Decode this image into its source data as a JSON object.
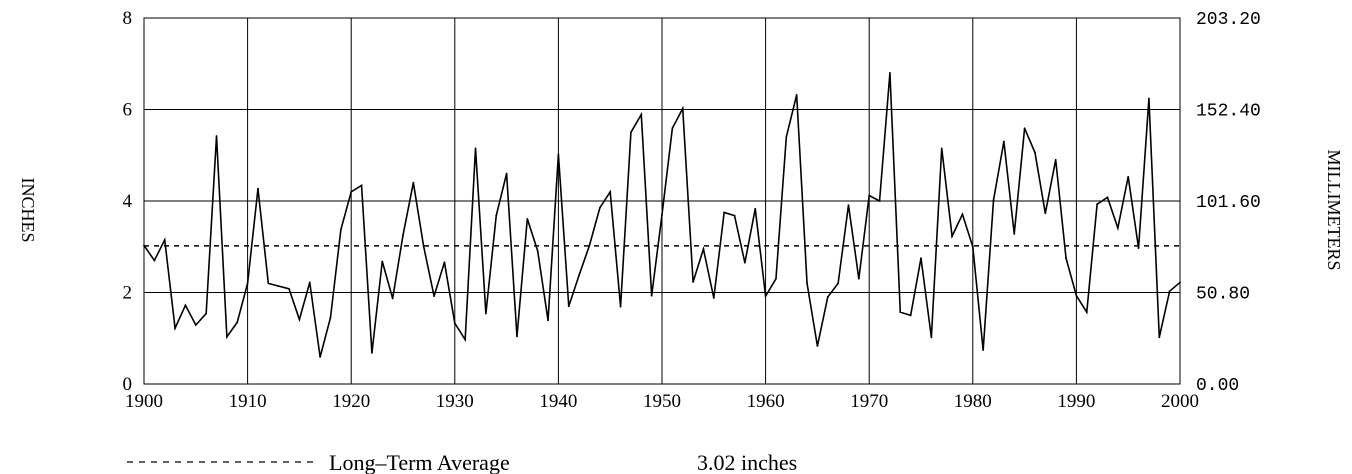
{
  "chart_data": {
    "type": "line",
    "title": "",
    "xlabel": "",
    "ylabel": "INCHES",
    "y2label": "MILLIMETERS",
    "xlim": [
      1900,
      2000
    ],
    "ylim": [
      0,
      8
    ],
    "x_ticks": [
      "1900",
      "1910",
      "1920",
      "1930",
      "1940",
      "1950",
      "1960",
      "1970",
      "1980",
      "1990",
      "2000"
    ],
    "y_ticks": [
      "0",
      "2",
      "4",
      "6",
      "8"
    ],
    "y2_ticks": [
      "0.00",
      "50.80",
      "101.60",
      "152.40",
      "203.20"
    ],
    "grid": true,
    "series": [
      {
        "name": "",
        "x": [
          1900,
          1901,
          1902,
          1903,
          1904,
          1905,
          1906,
          1907,
          1908,
          1909,
          1910,
          1911,
          1912,
          1913,
          1914,
          1915,
          1916,
          1917,
          1918,
          1919,
          1920,
          1921,
          1922,
          1923,
          1924,
          1925,
          1926,
          1927,
          1928,
          1929,
          1930,
          1931,
          1932,
          1933,
          1934,
          1935,
          1936,
          1937,
          1938,
          1939,
          1940,
          1941,
          1942,
          1943,
          1944,
          1945,
          1946,
          1947,
          1948,
          1949,
          1950,
          1951,
          1952,
          1953,
          1954,
          1955,
          1956,
          1957,
          1958,
          1959,
          1960,
          1961,
          1962,
          1963,
          1964,
          1965,
          1966,
          1967,
          1968,
          1969,
          1970,
          1971,
          1972,
          1973,
          1974,
          1975,
          1976,
          1977,
          1978,
          1979,
          1980,
          1981,
          1982,
          1983,
          1984,
          1985,
          1986,
          1987,
          1988,
          1989,
          1990,
          1991,
          1992,
          1993,
          1994,
          1995,
          1996,
          1997,
          1998,
          1999,
          2000
        ],
        "values": [
          3.03,
          2.7,
          3.15,
          1.22,
          1.72,
          1.29,
          1.54,
          5.42,
          1.03,
          1.35,
          2.2,
          4.27,
          2.2,
          2.14,
          2.08,
          1.41,
          2.22,
          0.59,
          1.45,
          3.37,
          4.2,
          4.34,
          0.68,
          2.68,
          1.87,
          3.25,
          4.4,
          3.0,
          1.92,
          2.66,
          1.33,
          0.97,
          5.15,
          1.54,
          3.68,
          4.6,
          1.04,
          3.61,
          2.91,
          1.39,
          5.02,
          1.7,
          2.38,
          3.03,
          3.85,
          4.2,
          1.69,
          5.5,
          5.89,
          1.93,
          3.7,
          5.59,
          6.02,
          2.23,
          2.95,
          1.88,
          3.75,
          3.68,
          2.65,
          3.83,
          1.92,
          2.3,
          5.4,
          6.32,
          2.2,
          0.83,
          1.9,
          2.2,
          3.91,
          2.3,
          4.12,
          4.0,
          6.8,
          1.57,
          1.5,
          2.75,
          1.02,
          5.15,
          3.23,
          3.71,
          3.0,
          0.74,
          4.02,
          5.3,
          3.28,
          5.59,
          5.06,
          3.73,
          4.9,
          2.75,
          1.93,
          1.57,
          3.93,
          4.08,
          3.41,
          4.53,
          2.97,
          6.24,
          1.02,
          2.03,
          2.22
        ]
      }
    ],
    "reference_line": {
      "value": 3.02,
      "style": "dashed"
    }
  },
  "legend": {
    "label": "Long–Term Average",
    "value": "3.02 inches"
  }
}
